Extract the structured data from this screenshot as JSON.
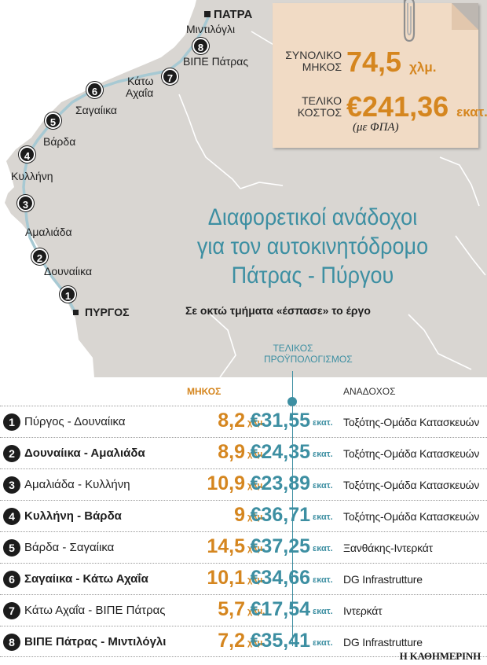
{
  "map": {
    "cities": {
      "patra": "ΠΑΤΡΑ",
      "pyrgos": "ΠΥΡΓΟΣ"
    },
    "places": {
      "mintilogli": "Μιντιλόγλι",
      "vipe_patras": "ΒΙΠΕ Πάτρας",
      "kato_achaia_1": "Κάτω",
      "kato_achaia_2": "Αχαΐα",
      "sagaiika": "Σαγαίικα",
      "varda": "Βάρδα",
      "kyllini": "Κυλλήνη",
      "amaliada": "Αμαλιάδα",
      "douneika": "Δουναίικα"
    },
    "markers": [
      "1",
      "2",
      "3",
      "4",
      "5",
      "6",
      "7",
      "8"
    ],
    "colors": {
      "land": "#d9d6d2",
      "sea": "#ffffff",
      "route": "#a7c9d3",
      "borders": "#ffffff"
    }
  },
  "note": {
    "total_length_label": "ΣΥΝΟΛΙΚΟ ΜΗΚΟΣ",
    "total_length_value": "74,5",
    "total_length_unit": "χλμ.",
    "final_cost_label": "ΤΕΛΙΚΟ ΚΟΣΤΟΣ",
    "final_cost_value": "€241,36",
    "final_cost_unit": "εκατ.",
    "vat": "(με ΦΠΑ)",
    "icon": "paperclip-icon"
  },
  "headline": {
    "line1": "Διαφορετικοί ανάδοχοι",
    "line2": "για τον αυτοκινητόδρομο",
    "line3": "Πάτρας - Πύργου",
    "subtitle": "Σε οκτώ τμήματα «έσπασε» το έργο"
  },
  "table": {
    "budget_header": "ΤΕΛΙΚΟΣ ΠΡΟΫΠΟΛΟΓΙΣΜΟΣ",
    "length_header": "ΜΗΚΟΣ",
    "contractor_header": "ΑΝΑΔΟΧΟΣ",
    "length_unit": "χλμ.",
    "cost_unit": "εκατ.",
    "rows": [
      {
        "num": "1",
        "name": "Πύργος - Δουναίικα",
        "length": "8,2",
        "cost": "€31,55",
        "contractor": "Τοξότης-Ομάδα Κατασκευών"
      },
      {
        "num": "2",
        "name": "Δουναίικα - Αμαλιάδα",
        "length": "8,9",
        "cost": "€24,35",
        "contractor": "Τοξότης-Ομάδα Κατασκευών"
      },
      {
        "num": "3",
        "name": "Αμαλιάδα - Κυλλήνη",
        "length": "10,9",
        "cost": "€23,89",
        "contractor": "Τοξότης-Ομάδα Κατασκευών"
      },
      {
        "num": "4",
        "name": "Κυλλήνη - Βάρδα",
        "length": "9",
        "cost": "€36,71",
        "contractor": "Τοξότης-Ομάδα Κατασκευών"
      },
      {
        "num": "5",
        "name": "Βάρδα - Σαγαίικα",
        "length": "14,5",
        "cost": "€37,25",
        "contractor": "Ξανθάκης-Ιντερκάτ"
      },
      {
        "num": "6",
        "name": "Σαγαίικα - Κάτω Αχαΐα",
        "length": "10,1",
        "cost": "€34,66",
        "contractor": "DG Infrastrutture"
      },
      {
        "num": "7",
        "name": "Κάτω Αχαΐα - ΒΙΠΕ Πάτρας",
        "length": "5,7",
        "cost": "€17,54",
        "contractor": "Ιντερκάτ"
      },
      {
        "num": "8",
        "name": "ΒΙΠΕ Πάτρας - Μιντιλόγλι",
        "length": "7,2",
        "cost": "€35,41",
        "contractor": "DG Infrastrutture"
      }
    ]
  },
  "credit": "Η ΚΑΘΗΜΕΡΙΝΗ",
  "colors": {
    "accent_orange": "#d5861f",
    "accent_teal": "#3d8fa2",
    "note_bg": "#f1dbc5"
  }
}
